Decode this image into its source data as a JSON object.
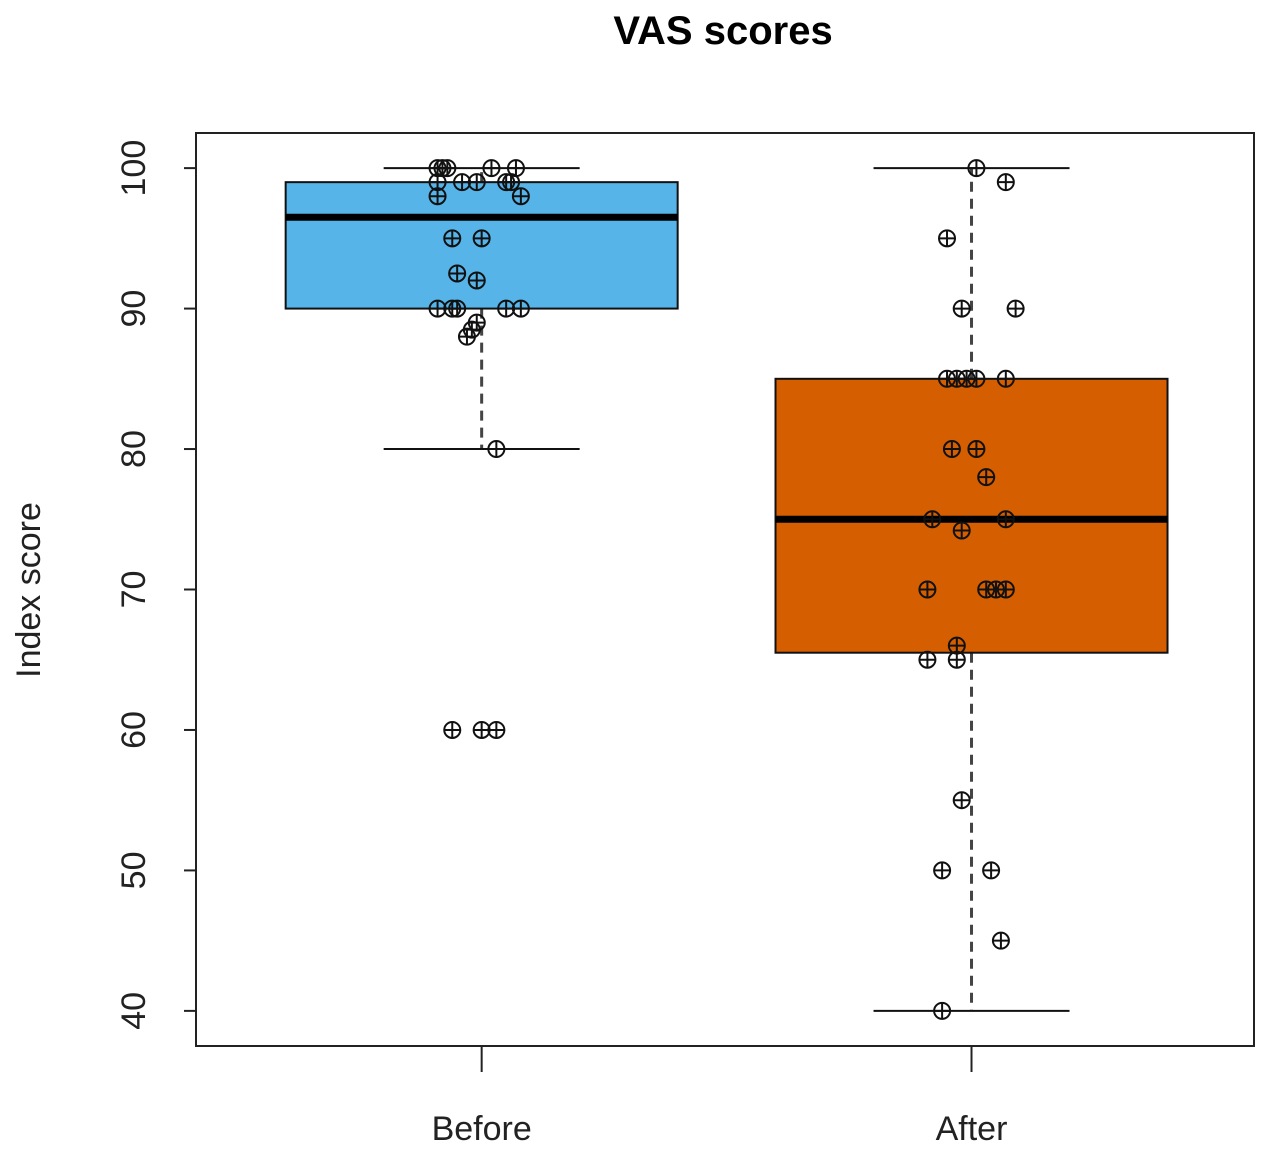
{
  "chart_data": {
    "type": "boxplot",
    "title": "VAS scores",
    "xlabel": "",
    "ylabel": "Index score",
    "ylim": [
      37.5,
      102.5
    ],
    "yticks": [
      40,
      50,
      60,
      70,
      80,
      90,
      100
    ],
    "categories": [
      "Before",
      "After"
    ],
    "boxes": [
      {
        "name": "Before",
        "color": "#56b4e9",
        "whisker_low": 80,
        "q1": 90,
        "median": 96.5,
        "q3": 99,
        "whisker_high": 100,
        "points": [
          {
            "y": 100,
            "dx": -0.09
          },
          {
            "y": 100,
            "dx": -0.08
          },
          {
            "y": 100,
            "dx": -0.07
          },
          {
            "y": 100,
            "dx": 0.02
          },
          {
            "y": 100,
            "dx": 0.07
          },
          {
            "y": 99,
            "dx": -0.09
          },
          {
            "y": 99,
            "dx": -0.04
          },
          {
            "y": 99,
            "dx": -0.01
          },
          {
            "y": 99,
            "dx": 0.05
          },
          {
            "y": 99,
            "dx": 0.06
          },
          {
            "y": 98,
            "dx": -0.09
          },
          {
            "y": 98,
            "dx": 0.08
          },
          {
            "y": 95,
            "dx": -0.06
          },
          {
            "y": 95,
            "dx": 0.0
          },
          {
            "y": 92.5,
            "dx": -0.05
          },
          {
            "y": 92,
            "dx": -0.01
          },
          {
            "y": 90,
            "dx": -0.09
          },
          {
            "y": 90,
            "dx": -0.06
          },
          {
            "y": 90,
            "dx": -0.05
          },
          {
            "y": 90,
            "dx": 0.05
          },
          {
            "y": 90,
            "dx": 0.08
          },
          {
            "y": 89,
            "dx": -0.01
          },
          {
            "y": 88.5,
            "dx": -0.02
          },
          {
            "y": 88,
            "dx": -0.03
          },
          {
            "y": 80,
            "dx": 0.03
          },
          {
            "y": 60,
            "dx": -0.06
          },
          {
            "y": 60,
            "dx": 0.0
          },
          {
            "y": 60,
            "dx": 0.03
          }
        ]
      },
      {
        "name": "After",
        "color": "#d55e00",
        "whisker_low": 40,
        "q1": 65.5,
        "median": 75,
        "q3": 85,
        "whisker_high": 100,
        "points": [
          {
            "y": 100,
            "dx": 0.01
          },
          {
            "y": 99,
            "dx": 0.07
          },
          {
            "y": 95,
            "dx": -0.05
          },
          {
            "y": 90,
            "dx": -0.02
          },
          {
            "y": 90,
            "dx": 0.09
          },
          {
            "y": 85,
            "dx": -0.05
          },
          {
            "y": 85,
            "dx": -0.03
          },
          {
            "y": 85,
            "dx": -0.01
          },
          {
            "y": 85,
            "dx": 0.01
          },
          {
            "y": 85,
            "dx": 0.07
          },
          {
            "y": 80,
            "dx": -0.04
          },
          {
            "y": 80,
            "dx": 0.01
          },
          {
            "y": 78,
            "dx": 0.03
          },
          {
            "y": 75,
            "dx": -0.08
          },
          {
            "y": 75,
            "dx": 0.07
          },
          {
            "y": 74.2,
            "dx": -0.02
          },
          {
            "y": 70,
            "dx": -0.09
          },
          {
            "y": 70,
            "dx": 0.03
          },
          {
            "y": 70,
            "dx": 0.05
          },
          {
            "y": 70,
            "dx": 0.07
          },
          {
            "y": 66,
            "dx": -0.03
          },
          {
            "y": 65,
            "dx": -0.09
          },
          {
            "y": 65,
            "dx": -0.03
          },
          {
            "y": 55,
            "dx": -0.02
          },
          {
            "y": 50,
            "dx": -0.06
          },
          {
            "y": 50,
            "dx": 0.04
          },
          {
            "y": 45,
            "dx": 0.06
          },
          {
            "y": 40,
            "dx": -0.06
          }
        ]
      }
    ]
  }
}
